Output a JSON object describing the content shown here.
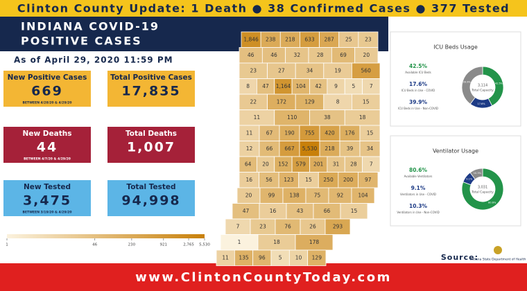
{
  "banner": "Clinton County Update: 1 Death ● 38 Confirmed Cases ● 377 Tested",
  "header": {
    "line1": "INDIANA COVID-19",
    "line2": "POSITIVE CASES"
  },
  "as_of": "As of April 29, 2020 11:59 PM",
  "stats": [
    {
      "label": "New Positive Cases",
      "value": "669",
      "note": "BETWEEN 4/28/20 & 4/29/20",
      "color": "#f3b634",
      "text_color": "#16284d"
    },
    {
      "label": "Total Positive Cases",
      "value": "17,835",
      "color": "#f3b634",
      "text_color": "#16284d"
    },
    {
      "label": "New Deaths",
      "value": "44",
      "note": "BETWEEN 4/7/20 & 4/29/20",
      "color": "#a52139",
      "text_color": "#ffffff"
    },
    {
      "label": "Total Deaths",
      "value": "1,007",
      "color": "#a52139",
      "text_color": "#ffffff"
    },
    {
      "label": "New Tested",
      "value": "3,475",
      "note": "BETWEEN 3/19/20 & 4/29/20",
      "color": "#5cb5e6",
      "text_color": "#16284d"
    },
    {
      "label": "Total Tested",
      "value": "94,998",
      "color": "#5cb5e6",
      "text_color": "#16284d"
    }
  ],
  "map": {
    "legend_ticks": [
      1,
      46,
      230,
      921,
      {
        "value": 2765,
        "label": "2,765"
      },
      {
        "value": 5530,
        "label": "5,530"
      }
    ],
    "rows": [
      [
        {
          "value": 1846,
          "label": "1,846"
        },
        238,
        218,
        633,
        287,
        25,
        23
      ],
      [
        46,
        46,
        32,
        28,
        69,
        20
      ],
      [
        23,
        27,
        34,
        19,
        560
      ],
      [
        8,
        47,
        {
          "value": 1164,
          "label": "1,164"
        },
        104,
        42,
        9,
        5,
        7
      ],
      [
        22,
        172,
        129,
        8,
        15
      ],
      [
        11,
        110,
        38,
        18
      ],
      [
        11,
        67,
        190,
        755,
        420,
        176,
        15
      ],
      [
        12,
        66,
        667,
        {
          "value": 5530,
          "label": "5,530"
        },
        218,
        39,
        34
      ],
      [
        64,
        20,
        152,
        579,
        201,
        31,
        28,
        7
      ],
      [
        16,
        56,
        123,
        15,
        250,
        200,
        97
      ],
      [
        20,
        99,
        138,
        75,
        92,
        104
      ],
      [
        47,
        16,
        43,
        66,
        15
      ],
      [
        7,
        23,
        76,
        26,
        293
      ],
      [
        1,
        18,
        178
      ],
      [
        11,
        135,
        96,
        5,
        10,
        129
      ]
    ]
  },
  "icu": {
    "title": "ICU Beds Usage",
    "total": "3,114",
    "total_label": "Total Capacity",
    "segments": [
      {
        "name": "Available ICU Beds",
        "value": 42.5,
        "value_label": "42.5%",
        "color": "#23944a"
      },
      {
        "name": "ICU Beds in Use - COVID",
        "value": 17.6,
        "value_label": "17.6%",
        "color": "#1d3b86"
      },
      {
        "name": "ICU Beds in Use - Non-COVID",
        "value": 39.9,
        "value_label": "39.9%",
        "color": "#8a8a8a"
      }
    ]
  },
  "ventilator": {
    "title": "Ventilator Usage",
    "total": "3,031",
    "total_label": "Total Capacity",
    "segments": [
      {
        "name": "Available Ventilators",
        "value": 80.6,
        "value_label": "80.6%",
        "color": "#23944a"
      },
      {
        "name": "Ventilators in Use - COVID",
        "value": 9.1,
        "value_label": "9.1%",
        "color": "#1d3b86"
      },
      {
        "name": "Ventilators in Use - Non-COVID",
        "value": 10.3,
        "value_label": "10.3%",
        "color": "#8a8a8a"
      }
    ]
  },
  "source": {
    "label": "Source:",
    "logo": "Indiana State Department of Health"
  },
  "footer": "www.ClintonCountyToday.com"
}
